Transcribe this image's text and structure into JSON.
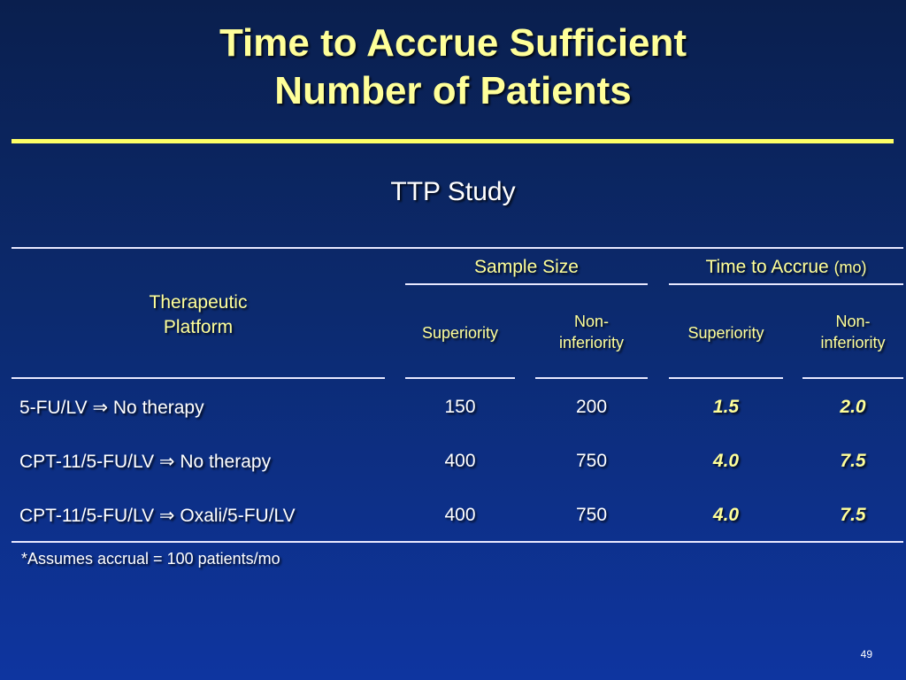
{
  "title": {
    "line1": "Time to Accrue Sufficient",
    "line2": "Number of Patients"
  },
  "subtitle": "TTP Study",
  "table": {
    "platform_header": {
      "line1": "Therapeutic",
      "line2": "Platform"
    },
    "sample_size_header": "Sample Size",
    "time_header": "Time to Accrue",
    "time_unit": "(mo)",
    "sub_headers": {
      "superiority": "Superiority",
      "noninf_line1": "Non-",
      "noninf_line2": "inferiority"
    },
    "rows": [
      {
        "platform": "5-FU/LV ⇒ No therapy",
        "ss_sup": "150",
        "ss_non": "200",
        "t_sup": "1.5",
        "t_non": "2.0"
      },
      {
        "platform": "CPT-11/5-FU/LV ⇒ No therapy",
        "ss_sup": "400",
        "ss_non": "750",
        "t_sup": "4.0",
        "t_non": "7.5"
      },
      {
        "platform": "CPT-11/5-FU/LV ⇒ Oxali/5-FU/LV",
        "ss_sup": "400",
        "ss_non": "750",
        "t_sup": "4.0",
        "t_non": "7.5"
      }
    ],
    "footnote": "*Assumes accrual = 100 patients/mo"
  },
  "page_number": "49",
  "colors": {
    "title": "#ffff99",
    "rule": "#ffff66",
    "background_top": "#0a1f4e",
    "background_bottom": "#0e35a0"
  }
}
